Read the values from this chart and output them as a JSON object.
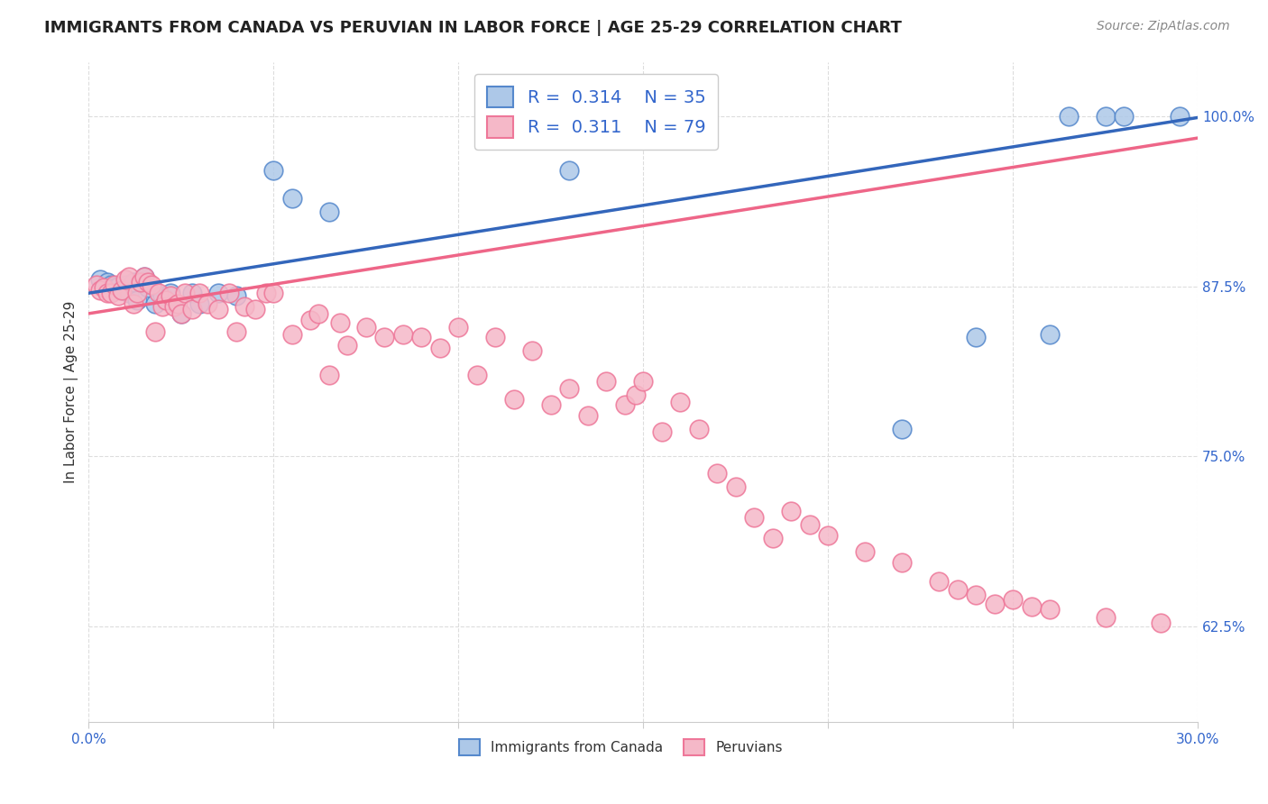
{
  "title": "IMMIGRANTS FROM CANADA VS PERUVIAN IN LABOR FORCE | AGE 25-29 CORRELATION CHART",
  "source": "Source: ZipAtlas.com",
  "ylabel": "In Labor Force | Age 25-29",
  "xlim": [
    0.0,
    0.3
  ],
  "ylim": [
    0.555,
    1.04
  ],
  "yticks": [
    0.625,
    0.75,
    0.875,
    1.0
  ],
  "ytick_labels": [
    "62.5%",
    "75.0%",
    "87.5%",
    "100.0%"
  ],
  "xticks": [
    0.0,
    0.05,
    0.1,
    0.15,
    0.2,
    0.25,
    0.3
  ],
  "xtick_labels": [
    "0.0%",
    "",
    "",
    "",
    "",
    "",
    "30.0%"
  ],
  "legend_r_canada": "0.314",
  "legend_n_canada": "35",
  "legend_r_peru": "0.311",
  "legend_n_peru": "79",
  "canada_color": "#adc8e8",
  "peru_color": "#f5b8c8",
  "canada_edge_color": "#5588cc",
  "peru_edge_color": "#ee7799",
  "canada_line_color": "#3366bb",
  "peru_line_color": "#ee6688",
  "canada_x": [
    0.003,
    0.005,
    0.006,
    0.007,
    0.008,
    0.009,
    0.01,
    0.011,
    0.012,
    0.013,
    0.014,
    0.015,
    0.016,
    0.018,
    0.02,
    0.022,
    0.025,
    0.028,
    0.03,
    0.035,
    0.04,
    0.05,
    0.055,
    0.065,
    0.13,
    0.135,
    0.155,
    0.16,
    0.22,
    0.24,
    0.26,
    0.265,
    0.275,
    0.28,
    0.295
  ],
  "canada_y": [
    0.88,
    0.878,
    0.876,
    0.874,
    0.875,
    0.872,
    0.876,
    0.87,
    0.878,
    0.865,
    0.878,
    0.882,
    0.874,
    0.862,
    0.868,
    0.87,
    0.855,
    0.87,
    0.862,
    0.87,
    0.868,
    0.96,
    0.94,
    0.93,
    0.96,
    1.0,
    1.0,
    1.0,
    0.77,
    0.838,
    0.84,
    1.0,
    1.0,
    1.0,
    1.0
  ],
  "peru_x": [
    0.002,
    0.003,
    0.004,
    0.005,
    0.006,
    0.007,
    0.008,
    0.009,
    0.01,
    0.011,
    0.012,
    0.013,
    0.014,
    0.015,
    0.016,
    0.017,
    0.018,
    0.019,
    0.02,
    0.021,
    0.022,
    0.023,
    0.024,
    0.025,
    0.026,
    0.028,
    0.03,
    0.032,
    0.035,
    0.038,
    0.04,
    0.042,
    0.045,
    0.048,
    0.05,
    0.055,
    0.06,
    0.062,
    0.065,
    0.068,
    0.07,
    0.075,
    0.08,
    0.085,
    0.09,
    0.095,
    0.1,
    0.105,
    0.11,
    0.115,
    0.12,
    0.125,
    0.13,
    0.135,
    0.14,
    0.145,
    0.148,
    0.15,
    0.155,
    0.16,
    0.165,
    0.17,
    0.175,
    0.18,
    0.185,
    0.19,
    0.195,
    0.2,
    0.21,
    0.22,
    0.23,
    0.235,
    0.24,
    0.245,
    0.25,
    0.255,
    0.26,
    0.275,
    0.29
  ],
  "peru_y": [
    0.876,
    0.872,
    0.874,
    0.87,
    0.87,
    0.876,
    0.868,
    0.872,
    0.88,
    0.882,
    0.862,
    0.87,
    0.878,
    0.882,
    0.878,
    0.876,
    0.842,
    0.87,
    0.86,
    0.865,
    0.868,
    0.86,
    0.862,
    0.855,
    0.87,
    0.858,
    0.87,
    0.862,
    0.858,
    0.87,
    0.842,
    0.86,
    0.858,
    0.87,
    0.87,
    0.84,
    0.85,
    0.855,
    0.81,
    0.848,
    0.832,
    0.845,
    0.838,
    0.84,
    0.838,
    0.83,
    0.845,
    0.81,
    0.838,
    0.792,
    0.828,
    0.788,
    0.8,
    0.78,
    0.805,
    0.788,
    0.795,
    0.805,
    0.768,
    0.79,
    0.77,
    0.738,
    0.728,
    0.705,
    0.69,
    0.71,
    0.7,
    0.692,
    0.68,
    0.672,
    0.658,
    0.652,
    0.648,
    0.642,
    0.645,
    0.64,
    0.638,
    0.632,
    0.628
  ],
  "background_color": "#ffffff",
  "grid_color": "#dddddd",
  "title_fontsize": 13,
  "axis_label_fontsize": 11,
  "tick_fontsize": 11,
  "legend_fontsize": 14,
  "source_fontsize": 10
}
